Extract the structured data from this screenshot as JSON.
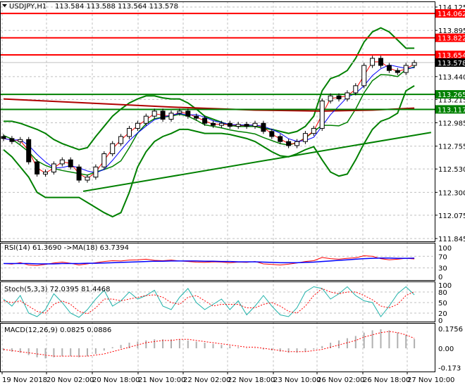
{
  "header": {
    "symbol": "USDJPY,H1",
    "ohlc": "113.584 113.588 113.564 113.578",
    "menu_icon": "triangle-down-icon"
  },
  "colors": {
    "bull_candle": "#ffffff",
    "bear_candle": "#000000",
    "bands": "#008000",
    "resistance": "#ff0000",
    "support": "#008000",
    "long_ma": "#b00000",
    "rsi": "#ff0000",
    "rsi_ma": "#0000ff",
    "stoch_main": "#20b2aa",
    "stoch_signal": "#ff0000",
    "macd_hist": "#b0b0b0",
    "macd_signal": "#ff0000",
    "current_price_tag": "#000000"
  },
  "chart_data": [
    {
      "type": "candlestick",
      "title": "USDJPY,H1",
      "price_ticks": [
        "114.125",
        "113.895",
        "113.440",
        "113.215",
        "112.985",
        "112.755",
        "112.530",
        "112.300",
        "112.075",
        "111.845"
      ],
      "ylim": [
        111.845,
        114.125
      ],
      "time_labels": [
        "19 Nov 2018",
        "20 Nov 02:00",
        "20 Nov 18:00",
        "21 Nov 10:00",
        "22 Nov 02:00",
        "22 Nov 18:00",
        "23 Nov 10:00",
        "26 Nov 02:00",
        "26 Nov 18:00",
        "27 Nov 10:00"
      ],
      "close": [
        112.83,
        112.8,
        112.82,
        112.6,
        112.48,
        112.5,
        112.58,
        112.62,
        112.55,
        112.42,
        112.45,
        112.55,
        112.68,
        112.78,
        112.85,
        112.93,
        112.98,
        113.05,
        113.1,
        113.02,
        113.08,
        113.1,
        113.05,
        113.03,
        112.98,
        112.96,
        112.98,
        112.95,
        112.97,
        112.95,
        112.98,
        112.9,
        112.85,
        112.8,
        112.76,
        112.8,
        112.88,
        112.93,
        113.2,
        113.25,
        113.22,
        113.28,
        113.35,
        113.55,
        113.62,
        113.55,
        113.5,
        113.48,
        113.55,
        113.578
      ],
      "bollinger_upper": [
        113.0,
        113.0,
        112.98,
        112.95,
        112.92,
        112.88,
        112.82,
        112.78,
        112.75,
        112.72,
        112.74,
        112.85,
        112.95,
        113.05,
        113.12,
        113.18,
        113.22,
        113.25,
        113.25,
        113.23,
        113.22,
        113.22,
        113.18,
        113.12,
        113.05,
        113.02,
        112.99,
        112.96,
        112.95,
        112.95,
        112.95,
        112.93,
        112.92,
        112.9,
        112.88,
        112.9,
        112.95,
        113.05,
        113.3,
        113.42,
        113.45,
        113.5,
        113.62,
        113.78,
        113.88,
        113.92,
        113.88,
        113.8,
        113.72,
        113.72
      ],
      "bollinger_lower": [
        112.72,
        112.65,
        112.55,
        112.45,
        112.3,
        112.25,
        112.25,
        112.25,
        112.25,
        112.25,
        112.2,
        112.15,
        112.1,
        112.06,
        112.1,
        112.3,
        112.55,
        112.7,
        112.8,
        112.85,
        112.88,
        112.92,
        112.92,
        112.9,
        112.88,
        112.88,
        112.88,
        112.87,
        112.85,
        112.83,
        112.8,
        112.75,
        112.7,
        112.66,
        112.65,
        112.68,
        112.72,
        112.75,
        112.62,
        112.5,
        112.46,
        112.48,
        112.62,
        112.78,
        112.92,
        113.0,
        113.03,
        113.08,
        113.3,
        113.35
      ],
      "long_ma": [
        [
          0,
          113.22
        ],
        [
          10,
          113.18
        ],
        [
          20,
          113.14
        ],
        [
          30,
          113.11
        ],
        [
          38,
          113.1
        ],
        [
          44,
          113.11
        ],
        [
          49,
          113.13
        ]
      ],
      "levels": [
        {
          "value": "114.062",
          "kind": "resistance"
        },
        {
          "value": "113.822",
          "kind": "resistance"
        },
        {
          "value": "113.654",
          "kind": "resistance"
        },
        {
          "value": "113.265",
          "kind": "support"
        },
        {
          "value": "113.117",
          "kind": "support"
        }
      ],
      "current_price": "113.578",
      "trendline": {
        "from": [
          9.5,
          112.31
        ],
        "to": [
          51,
          112.89
        ]
      }
    },
    {
      "type": "line",
      "title": "RSI(14) 61.3690  ->MA(18) 63.7394",
      "ylim": [
        0,
        100
      ],
      "ticks": [
        "100",
        "70",
        "30",
        "0"
      ],
      "rsi": [
        45,
        43,
        48,
        40,
        38,
        42,
        47,
        50,
        46,
        40,
        44,
        48,
        52,
        55,
        54,
        57,
        58,
        60,
        56,
        55,
        57,
        54,
        52,
        50,
        49,
        51,
        50,
        48,
        50,
        49,
        52,
        44,
        42,
        40,
        43,
        47,
        52,
        55,
        66,
        62,
        60,
        63,
        65,
        72,
        70,
        62,
        58,
        60,
        63,
        61
      ],
      "rsi_ma": [
        45,
        45,
        45,
        45,
        44,
        44,
        44,
        45,
        45,
        45,
        46,
        46,
        47,
        48,
        49,
        50,
        51,
        52,
        53,
        53,
        54,
        54,
        54,
        54,
        53,
        53,
        52,
        52,
        51,
        51,
        51,
        50,
        49,
        48,
        48,
        48,
        49,
        50,
        52,
        54,
        56,
        58,
        60,
        62,
        63,
        64,
        64,
        63,
        63,
        63.7
      ]
    },
    {
      "type": "line",
      "title": "Stoch(5,3,3) 72.0395 81.4468",
      "ylim": [
        0,
        100
      ],
      "ticks": [
        "100",
        "80",
        "50",
        "20",
        "0"
      ],
      "main": [
        60,
        40,
        70,
        20,
        10,
        30,
        75,
        50,
        20,
        8,
        30,
        60,
        85,
        40,
        55,
        80,
        60,
        70,
        85,
        40,
        30,
        65,
        90,
        50,
        30,
        45,
        60,
        30,
        55,
        15,
        40,
        70,
        40,
        15,
        10,
        35,
        80,
        95,
        90,
        60,
        75,
        95,
        70,
        55,
        50,
        10,
        40,
        75,
        95,
        72
      ],
      "signal": [
        55,
        50,
        55,
        40,
        25,
        20,
        45,
        55,
        45,
        25,
        18,
        35,
        60,
        60,
        55,
        60,
        65,
        70,
        72,
        65,
        50,
        45,
        65,
        70,
        55,
        40,
        45,
        45,
        45,
        35,
        35,
        45,
        50,
        40,
        25,
        20,
        40,
        70,
        90,
        80,
        75,
        80,
        80,
        70,
        58,
        40,
        35,
        45,
        70,
        81
      ]
    },
    {
      "type": "bar",
      "title": "MACD(12,26,9) 0.0825 0.0886",
      "ylim": [
        -0.173,
        0.1756
      ],
      "ticks": [
        "0.1756",
        "0.00",
        "-0.173"
      ],
      "macd": [
        -0.02,
        -0.03,
        -0.04,
        -0.06,
        -0.08,
        -0.09,
        -0.08,
        -0.07,
        -0.07,
        -0.08,
        -0.07,
        -0.05,
        -0.02,
        0.01,
        0.03,
        0.05,
        0.06,
        0.07,
        0.08,
        0.08,
        0.08,
        0.08,
        0.07,
        0.06,
        0.05,
        0.04,
        0.03,
        0.02,
        0.01,
        0.0,
        0.0,
        -0.01,
        -0.02,
        -0.03,
        -0.04,
        -0.04,
        -0.03,
        -0.01,
        0.02,
        0.05,
        0.07,
        0.09,
        0.11,
        0.14,
        0.16,
        0.17,
        0.16,
        0.14,
        0.12,
        0.0825
      ],
      "signal": [
        -0.01,
        -0.02,
        -0.03,
        -0.04,
        -0.05,
        -0.06,
        -0.07,
        -0.07,
        -0.07,
        -0.07,
        -0.07,
        -0.06,
        -0.05,
        -0.03,
        -0.01,
        0.01,
        0.03,
        0.05,
        0.06,
        0.07,
        0.07,
        0.08,
        0.08,
        0.07,
        0.06,
        0.05,
        0.04,
        0.03,
        0.02,
        0.01,
        0.01,
        0.0,
        -0.01,
        -0.02,
        -0.03,
        -0.03,
        -0.03,
        -0.02,
        -0.01,
        0.01,
        0.03,
        0.05,
        0.07,
        0.1,
        0.12,
        0.14,
        0.15,
        0.14,
        0.12,
        0.0886
      ]
    }
  ]
}
